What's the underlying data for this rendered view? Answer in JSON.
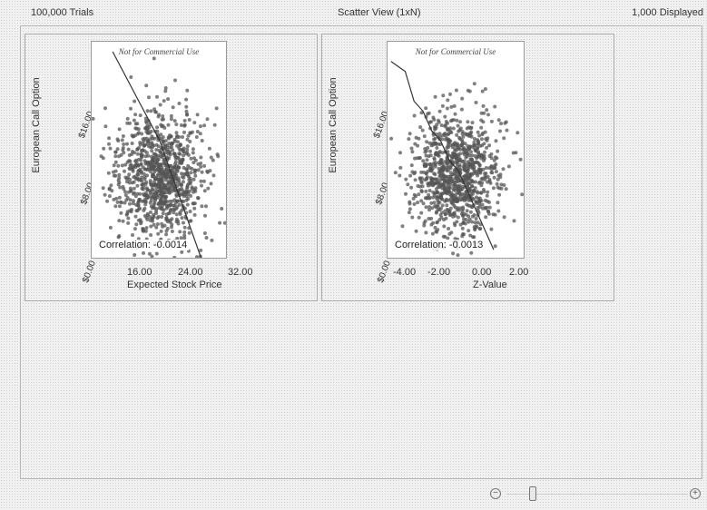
{
  "header": {
    "trials": "100,000 Trials",
    "view_title": "Scatter View (1xN)",
    "displayed": "1,000 Displayed"
  },
  "zoom": {
    "minus_icon": "−",
    "plus_icon": "+"
  },
  "charts": [
    {
      "watermark": "Not for Commercial Use",
      "correlation": "Correlation: -0.0014",
      "y_title": "European Call Option",
      "y_ticks": [
        "$16.00",
        "$8.00",
        "$0.00"
      ],
      "x_title": "Expected Stock Price",
      "x_ticks": [
        "16.00",
        "24.00",
        "32.00"
      ]
    },
    {
      "watermark": "Not for Commercial Use",
      "correlation": "Correlation: -0.0013",
      "y_title": "European Call Option",
      "y_ticks": [
        "$16.00",
        "$8.00",
        "$0.00"
      ],
      "x_title": "Z-Value",
      "x_ticks": [
        "-4.00",
        "-2.00",
        "0.00",
        "2.00"
      ]
    }
  ],
  "chart_data": [
    {
      "type": "scatter",
      "title": "",
      "xlabel": "Expected Stock Price",
      "ylabel": "European Call Option",
      "xlim": [
        10,
        36
      ],
      "ylim": [
        0,
        22
      ],
      "x_ticks": [
        16,
        24,
        32
      ],
      "y_ticks": [
        16,
        8,
        0
      ],
      "points_displayed": 1000,
      "correlation": -0.0014,
      "overlay_line": {
        "x": [
          14,
          17,
          19,
          21,
          23,
          25,
          27,
          29,
          31
        ],
        "y": [
          21,
          18,
          16,
          14,
          12,
          9,
          6,
          3,
          0
        ]
      },
      "grid": false
    },
    {
      "type": "scatter",
      "title": "",
      "xlabel": "Z-Value",
      "ylabel": "European Call Option",
      "xlim": [
        -4.5,
        3.3
      ],
      "ylim": [
        0,
        22
      ],
      "x_ticks": [
        -4,
        -2,
        0,
        2
      ],
      "y_ticks": [
        16,
        8,
        0
      ],
      "points_displayed": 1000,
      "correlation": -0.0013,
      "overlay_line": {
        "x": [
          -4.3,
          -3.5,
          -3.0,
          -2.5,
          -2.0,
          -1.5,
          -1.0,
          -0.5,
          0.0,
          0.5,
          1.0,
          1.5
        ],
        "y": [
          20,
          19,
          16,
          15,
          13,
          12,
          10,
          9,
          7,
          5,
          3,
          1
        ]
      },
      "grid": false
    }
  ]
}
